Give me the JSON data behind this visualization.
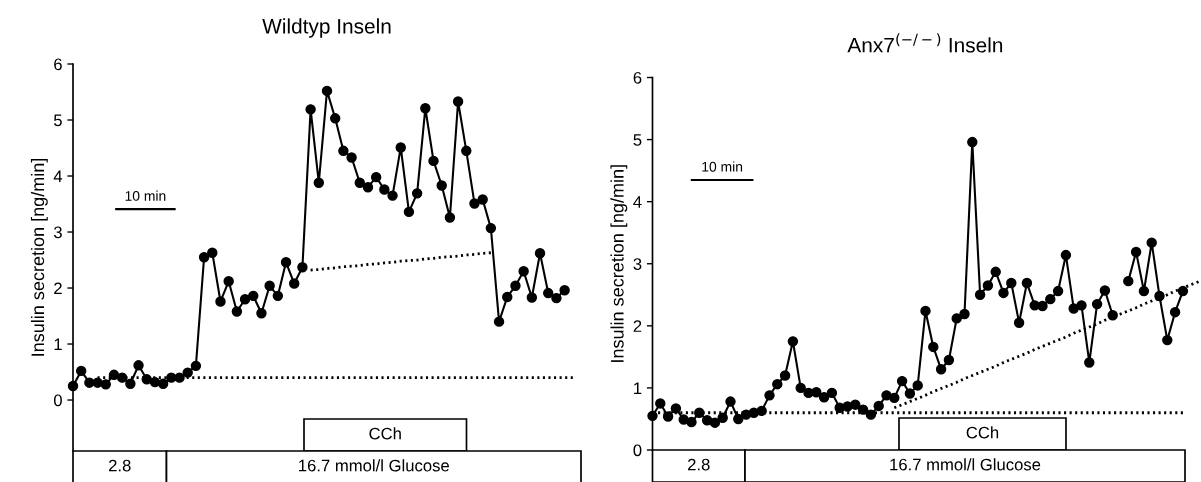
{
  "chart_data": [
    {
      "type": "line",
      "title": "Wildtyp Inseln",
      "ylabel": "Insulin secretion [ng/min]",
      "tick_labels": "y",
      "categories": [
        null,
        null,
        null,
        null,
        null,
        null,
        null,
        null,
        null,
        null,
        null,
        null,
        null,
        null,
        null,
        null,
        null,
        null,
        null,
        null,
        null,
        null,
        null,
        null,
        null,
        null,
        null,
        null,
        null,
        null,
        null,
        null,
        null,
        null,
        null,
        null,
        null,
        null,
        null,
        null,
        null,
        null,
        null,
        null,
        null,
        null,
        null,
        null,
        null,
        null,
        null,
        null,
        null,
        null,
        null,
        null,
        null,
        null,
        null,
        null,
        null,
        null,
        null
      ],
      "ylim": [
        -0.91,
        6
      ],
      "yticks": [
        0,
        1,
        2,
        3,
        4,
        5,
        6
      ],
      "series": [
        {
          "type": "line",
          "color": "#000000",
          "marker": "circle",
          "line_style": "solid",
          "values": [
            0.25,
            0.52,
            0.31,
            0.31,
            0.28,
            0.45,
            0.4,
            0.29,
            0.62,
            0.37,
            0.32,
            0.29,
            0.4,
            0.4,
            0.49,
            0.61,
            2.55,
            2.63,
            1.76,
            2.12,
            1.58,
            1.8,
            1.86,
            1.55,
            2.04,
            1.86,
            2.46,
            2.08,
            2.37,
            5.19,
            3.88,
            5.52,
            5.03,
            4.45,
            4.33,
            3.88,
            3.8,
            3.98,
            3.76,
            3.65,
            4.51,
            3.36,
            3.69,
            5.21,
            4.27,
            3.83,
            3.26,
            5.33,
            4.45,
            3.51,
            3.58,
            3.07,
            1.4,
            1.84,
            2.04,
            2.3,
            1.83,
            2.62,
            1.91,
            1.82,
            1.96,
            null,
            null
          ]
        },
        {
          "type": "line",
          "color": "#000000",
          "marker": "none",
          "line_style": "dotted",
          "values": [
            null,
            null,
            null,
            0.4,
            0.4,
            0.4,
            0.4,
            0.4,
            0.4,
            0.4,
            0.4,
            0.4,
            0.4,
            0.4,
            0.4,
            0.4,
            0.4,
            0.4,
            0.4,
            0.4,
            0.4,
            0.4,
            0.4,
            0.4,
            0.4,
            0.4,
            0.4,
            0.4,
            0.4,
            0.4,
            0.4,
            0.4,
            0.4,
            0.4,
            0.4,
            0.4,
            0.4,
            0.4,
            0.4,
            0.4,
            0.4,
            0.4,
            0.4,
            0.4,
            0.4,
            0.4,
            0.4,
            0.4,
            0.4,
            0.4,
            0.4,
            0.4,
            0.4,
            0.4,
            0.4,
            0.4,
            0.4,
            0.4,
            0.4,
            0.4,
            0.4,
            0.4,
            null
          ]
        },
        {
          "type": "line",
          "color": "#000000",
          "marker": "none",
          "line_style": "dotted",
          "values": [
            null,
            null,
            null,
            null,
            null,
            null,
            null,
            null,
            null,
            null,
            null,
            null,
            null,
            null,
            null,
            null,
            null,
            null,
            null,
            null,
            null,
            null,
            null,
            null,
            null,
            null,
            null,
            null,
            null,
            2.32,
            2.33,
            2.35,
            2.36,
            2.38,
            2.39,
            2.4,
            2.42,
            2.43,
            2.45,
            2.46,
            2.48,
            2.49,
            2.5,
            2.52,
            2.53,
            2.55,
            2.56,
            2.57,
            2.59,
            2.6,
            2.62,
            2.63,
            null,
            null,
            null,
            null,
            null,
            null,
            null,
            null,
            null,
            null,
            null
          ]
        }
      ],
      "annotations": [
        "10 min",
        "CCh",
        "2.8",
        "16.7 mmol/l Glucose"
      ]
    },
    {
      "type": "line",
      "title": "Anx7$^{(−/−)}$ Inseln",
      "ylabel": "Insulin secretion [ng/min]",
      "tick_labels": "y",
      "categories": [
        null,
        null,
        null,
        null,
        null,
        null,
        null,
        null,
        null,
        null,
        null,
        null,
        null,
        null,
        null,
        null,
        null,
        null,
        null,
        null,
        null,
        null,
        null,
        null,
        null,
        null,
        null,
        null,
        null,
        null,
        null,
        null,
        null,
        null,
        null,
        null,
        null,
        null,
        null,
        null,
        null,
        null,
        null,
        null,
        null,
        null,
        null,
        null,
        null,
        null,
        null,
        null,
        null,
        null,
        null,
        null,
        null,
        null,
        null,
        null,
        null,
        null,
        null,
        null,
        null,
        null,
        null,
        null,
        null,
        null,
        null
      ],
      "ylim": [
        0,
        6
      ],
      "yticks": [
        0,
        1,
        2,
        3,
        4,
        5,
        6
      ],
      "series": [
        {
          "type": "line",
          "color": "#000000",
          "marker": "circle",
          "line_style": "solid",
          "values": [
            0.55,
            0.75,
            0.54,
            0.67,
            0.49,
            0.45,
            0.6,
            0.48,
            0.44,
            0.52,
            0.78,
            0.5,
            0.57,
            0.6,
            0.63,
            0.88,
            1.06,
            1.2,
            1.75,
            1.0,
            0.92,
            0.93,
            0.85,
            0.92,
            0.68,
            0.7,
            0.73,
            0.65,
            0.57,
            0.71,
            0.88,
            0.84,
            1.11,
            0.91,
            1.04,
            2.24,
            1.66,
            1.3,
            1.45,
            2.12,
            2.19,
            4.96,
            2.5,
            2.65,
            2.87,
            2.53,
            2.69,
            2.05,
            2.69,
            2.33,
            2.32,
            2.43,
            2.56,
            3.14,
            2.28,
            2.33,
            1.41,
            2.35,
            2.57,
            2.17,
            null,
            2.72,
            3.19,
            2.56,
            3.34,
            2.48,
            1.77,
            2.22,
            2.56,
            null,
            null
          ]
        },
        {
          "type": "line",
          "color": "#000000",
          "marker": "none",
          "line_style": "dotted",
          "values": [
            0.6,
            0.6,
            0.6,
            0.6,
            0.6,
            0.6,
            0.6,
            0.6,
            0.6,
            0.6,
            0.6,
            0.6,
            0.6,
            0.6,
            0.6,
            0.6,
            0.6,
            0.6,
            0.6,
            0.6,
            0.6,
            0.6,
            0.6,
            0.6,
            0.6,
            0.6,
            0.6,
            0.6,
            0.6,
            0.6,
            0.6,
            0.6,
            0.6,
            0.6,
            0.6,
            0.6,
            0.6,
            0.6,
            0.6,
            0.6,
            0.6,
            0.6,
            0.6,
            0.6,
            0.6,
            0.6,
            0.6,
            0.6,
            0.6,
            0.6,
            0.6,
            0.6,
            0.6,
            0.6,
            0.6,
            0.6,
            0.6,
            0.6,
            0.6,
            0.6,
            0.6,
            0.6,
            0.6,
            0.6,
            0.6,
            0.6,
            0.6,
            0.6,
            0.6,
            null,
            null
          ]
        },
        {
          "type": "line",
          "color": "#000000",
          "marker": "none",
          "line_style": "dotted",
          "values": [
            null,
            null,
            null,
            null,
            null,
            null,
            null,
            null,
            null,
            null,
            null,
            null,
            null,
            null,
            null,
            null,
            null,
            null,
            null,
            null,
            null,
            null,
            null,
            null,
            null,
            null,
            null,
            null,
            null,
            null,
            null,
            0.68,
            0.73,
            0.78,
            0.83,
            0.88,
            0.94,
            0.99,
            1.04,
            1.09,
            1.15,
            1.2,
            1.25,
            1.3,
            1.35,
            1.41,
            1.46,
            1.51,
            1.56,
            1.62,
            1.67,
            1.72,
            1.77,
            1.82,
            1.88,
            1.93,
            1.98,
            2.03,
            2.09,
            2.14,
            2.19,
            2.24,
            2.29,
            2.35,
            2.4,
            2.45,
            2.5,
            2.56,
            2.61,
            2.66,
            2.71
          ]
        }
      ],
      "annotations": [
        "10 min",
        "CCh",
        "2.8",
        "16.7 mmol/l Glucose"
      ]
    }
  ]
}
